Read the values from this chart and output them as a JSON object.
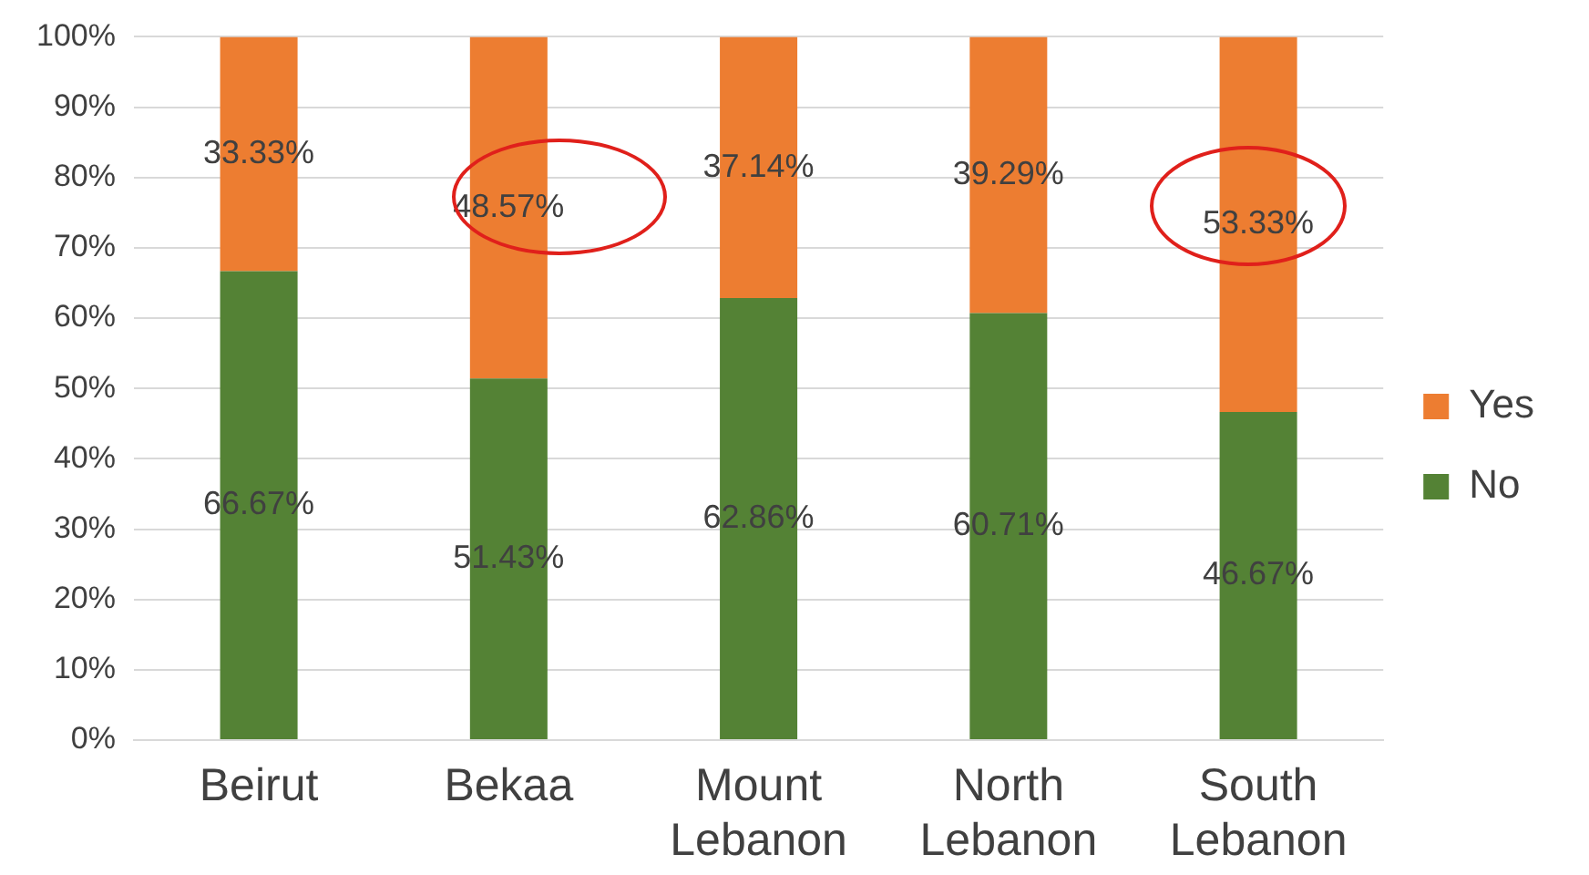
{
  "chart_data": {
    "type": "bar",
    "stacked": true,
    "categories": [
      "Beirut",
      "Bekaa",
      "Mount Lebanon",
      "North Lebanon",
      "South Lebanon"
    ],
    "series": [
      {
        "name": "No",
        "color": "#548235",
        "values": [
          66.67,
          51.43,
          62.86,
          60.71,
          46.67
        ],
        "value_labels": [
          "66.67%",
          "51.43%",
          "62.86%",
          "60.71%",
          "46.67%"
        ]
      },
      {
        "name": "Yes",
        "color": "#ed7d31",
        "values": [
          33.33,
          48.57,
          37.14,
          39.29,
          53.33
        ],
        "value_labels": [
          "33.33%",
          "48.57%",
          "37.14%",
          "39.29%",
          "53.33%"
        ]
      }
    ],
    "ylim": [
      0,
      100
    ],
    "yticks": [
      {
        "value": 0,
        "label": "0%"
      },
      {
        "value": 10,
        "label": "10%"
      },
      {
        "value": 20,
        "label": "20%"
      },
      {
        "value": 30,
        "label": "30%"
      },
      {
        "value": 40,
        "label": "40%"
      },
      {
        "value": 50,
        "label": "50%"
      },
      {
        "value": 60,
        "label": "60%"
      },
      {
        "value": 70,
        "label": "70%"
      },
      {
        "value": 80,
        "label": "80%"
      },
      {
        "value": 90,
        "label": "90%"
      },
      {
        "value": 100,
        "label": "100%"
      }
    ],
    "grid": "y",
    "legend": "right"
  }
}
